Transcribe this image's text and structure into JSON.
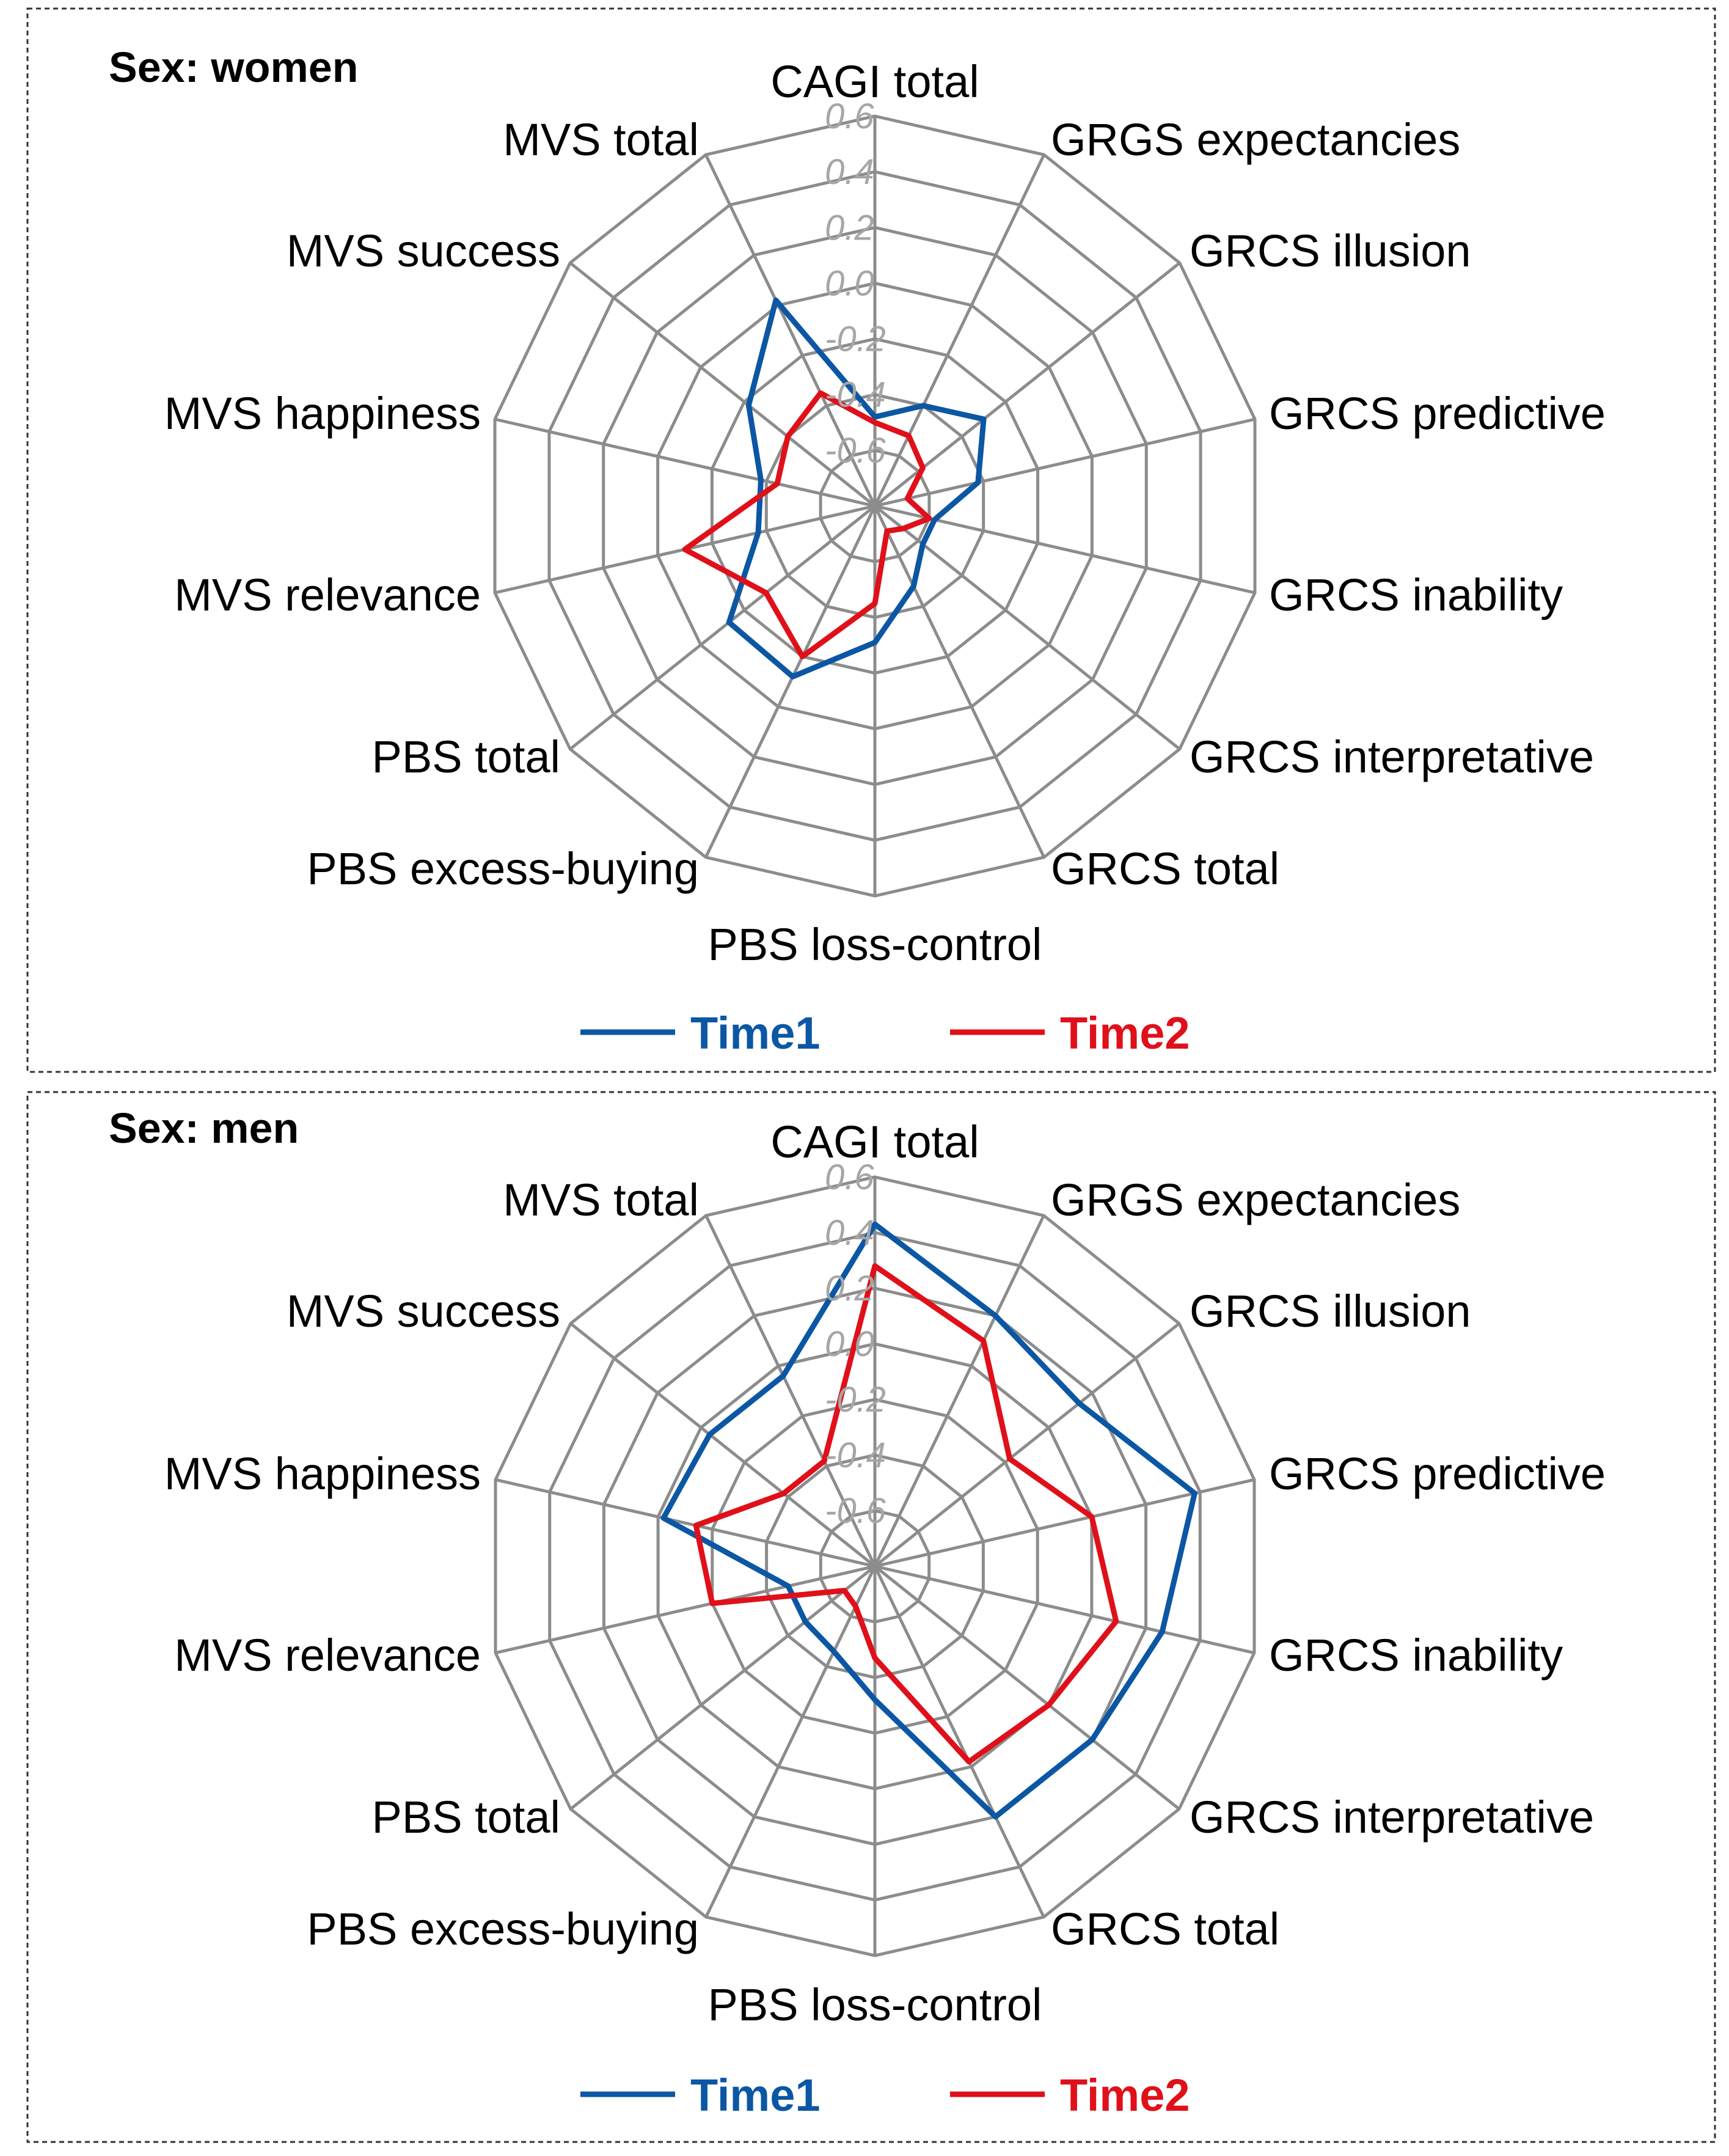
{
  "chart_data": [
    {
      "type": "radar",
      "title": "Sex: women",
      "categories": [
        "CAGI total",
        "GRGS expectancies",
        "GRCS illusion",
        "GRCS predictive",
        "GRCS inability",
        "GRCS interpretative",
        "GRCS total",
        "PBS loss-control",
        "PBS excess-buying",
        "PBS total",
        "MVS relevance",
        "MVS happiness",
        "MVS success",
        "MVS total"
      ],
      "rlim": [
        -0.8,
        0.6
      ],
      "ticks": [
        "0.6",
        "0.4",
        "0.2",
        "0.0",
        "-0.2",
        "-0.4",
        "-0.6"
      ],
      "series": [
        {
          "name": "Time1",
          "color": "#0b57a4",
          "values": [
            -0.48,
            -0.4,
            -0.3,
            -0.42,
            -0.58,
            -0.58,
            -0.48,
            -0.31,
            -0.12,
            -0.13,
            -0.37,
            -0.38,
            -0.22,
            0.02
          ]
        },
        {
          "name": "Time2",
          "color": "#e0101a",
          "values": [
            -0.5,
            -0.52,
            -0.58,
            -0.68,
            -0.6,
            -0.67,
            -0.7,
            -0.45,
            -0.2,
            -0.3,
            -0.1,
            -0.44,
            -0.4,
            -0.35
          ]
        }
      ]
    },
    {
      "type": "radar",
      "title": "Sex: men",
      "categories": [
        "CAGI total",
        "GRGS expectancies",
        "GRCS illusion",
        "GRCS predictive",
        "GRCS inability",
        "GRCS interpretative",
        "GRCS total",
        "PBS loss-control",
        "PBS excess-buying",
        "PBS total",
        "MVS relevance",
        "MVS happiness",
        "MVS success",
        "MVS total"
      ],
      "rlim": [
        -0.8,
        0.6
      ],
      "ticks": [
        "0.6",
        "0.4",
        "0.2",
        "0.0",
        "-0.2",
        "-0.4",
        "-0.6"
      ],
      "series": [
        {
          "name": "Time1",
          "color": "#0b57a4",
          "values": [
            0.43,
            0.2,
            0.14,
            0.38,
            0.26,
            0.2,
            0.2,
            -0.32,
            -0.46,
            -0.48,
            -0.48,
            -0.02,
            -0.04,
            -0.04
          ]
        },
        {
          "name": "Time2",
          "color": "#e0101a",
          "values": [
            0.28,
            0.1,
            -0.18,
            0.0,
            0.09,
            0.0,
            -0.02,
            -0.47,
            -0.64,
            -0.66,
            -0.2,
            -0.14,
            -0.38,
            -0.38
          ]
        }
      ]
    }
  ]
}
